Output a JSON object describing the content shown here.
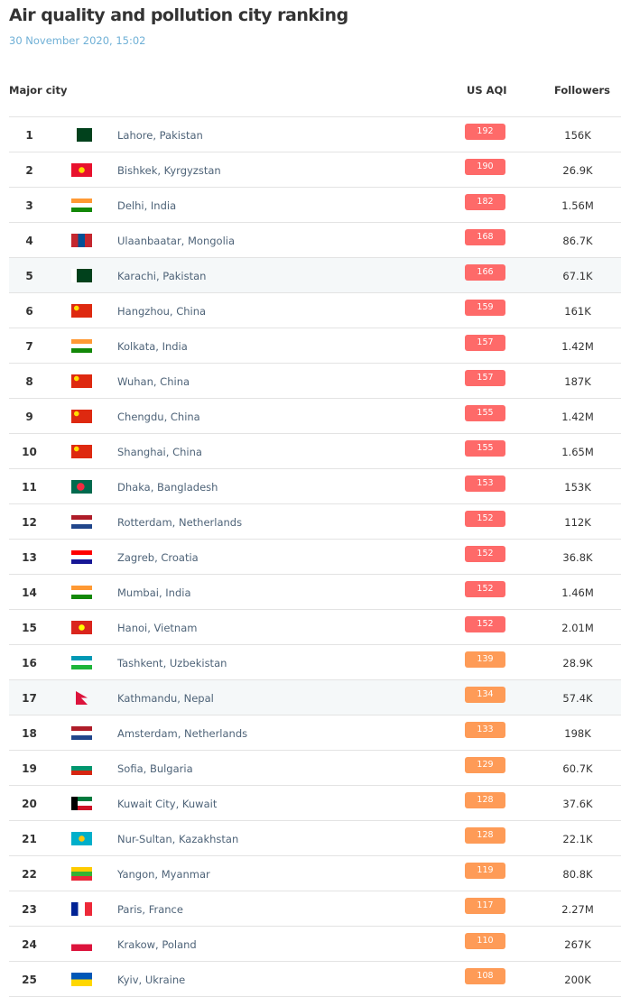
{
  "title": "Air quality and pollution city ranking",
  "date": "30 November 2020, 15:02",
  "headers": {
    "city": "Major city",
    "aqi": "US AQI",
    "followers": "Followers"
  },
  "colors": {
    "unhealthy": "#fe6a69",
    "sensitive": "#fe9b57"
  },
  "rows": [
    {
      "rank": "1",
      "flag": "pk",
      "city": "Lahore, Pakistan",
      "aqi": "192",
      "followers": "156K"
    },
    {
      "rank": "2",
      "flag": "kg",
      "city": "Bishkek, Kyrgyzstan",
      "aqi": "190",
      "followers": "26.9K"
    },
    {
      "rank": "3",
      "flag": "in",
      "city": "Delhi, India",
      "aqi": "182",
      "followers": "1.56M"
    },
    {
      "rank": "4",
      "flag": "mn",
      "city": "Ulaanbaatar, Mongolia",
      "aqi": "168",
      "followers": "86.7K"
    },
    {
      "rank": "5",
      "flag": "pk",
      "city": "Karachi, Pakistan",
      "aqi": "166",
      "followers": "67.1K",
      "highlight": true
    },
    {
      "rank": "6",
      "flag": "cn",
      "city": "Hangzhou, China",
      "aqi": "159",
      "followers": "161K"
    },
    {
      "rank": "7",
      "flag": "in",
      "city": "Kolkata, India",
      "aqi": "157",
      "followers": "1.42M"
    },
    {
      "rank": "8",
      "flag": "cn",
      "city": "Wuhan, China",
      "aqi": "157",
      "followers": "187K"
    },
    {
      "rank": "9",
      "flag": "cn",
      "city": "Chengdu, China",
      "aqi": "155",
      "followers": "1.42M"
    },
    {
      "rank": "10",
      "flag": "cn",
      "city": "Shanghai, China",
      "aqi": "155",
      "followers": "1.65M"
    },
    {
      "rank": "11",
      "flag": "bd",
      "city": "Dhaka, Bangladesh",
      "aqi": "153",
      "followers": "153K"
    },
    {
      "rank": "12",
      "flag": "nl",
      "city": "Rotterdam, Netherlands",
      "aqi": "152",
      "followers": "112K"
    },
    {
      "rank": "13",
      "flag": "hr",
      "city": "Zagreb, Croatia",
      "aqi": "152",
      "followers": "36.8K"
    },
    {
      "rank": "14",
      "flag": "in",
      "city": "Mumbai, India",
      "aqi": "152",
      "followers": "1.46M"
    },
    {
      "rank": "15",
      "flag": "vn",
      "city": "Hanoi, Vietnam",
      "aqi": "152",
      "followers": "2.01M"
    },
    {
      "rank": "16",
      "flag": "uz2",
      "city": "Tashkent, Uzbekistan",
      "aqi": "139",
      "followers": "28.9K"
    },
    {
      "rank": "17",
      "flag": "np",
      "city": "Kathmandu, Nepal",
      "aqi": "134",
      "followers": "57.4K",
      "highlight": true
    },
    {
      "rank": "18",
      "flag": "nl",
      "city": "Amsterdam, Netherlands",
      "aqi": "133",
      "followers": "198K"
    },
    {
      "rank": "19",
      "flag": "bg",
      "city": "Sofia, Bulgaria",
      "aqi": "129",
      "followers": "60.7K"
    },
    {
      "rank": "20",
      "flag": "kw",
      "city": "Kuwait City, Kuwait",
      "aqi": "128",
      "followers": "37.6K"
    },
    {
      "rank": "21",
      "flag": "kz",
      "city": "Nur-Sultan, Kazakhstan",
      "aqi": "128",
      "followers": "22.1K"
    },
    {
      "rank": "22",
      "flag": "mm",
      "city": "Yangon, Myanmar",
      "aqi": "119",
      "followers": "80.8K"
    },
    {
      "rank": "23",
      "flag": "fr",
      "city": "Paris, France",
      "aqi": "117",
      "followers": "2.27M"
    },
    {
      "rank": "24",
      "flag": "pl",
      "city": "Krakow, Poland",
      "aqi": "110",
      "followers": "267K"
    },
    {
      "rank": "25",
      "flag": "ua",
      "city": "Kyiv, Ukraine",
      "aqi": "108",
      "followers": "200K"
    }
  ]
}
